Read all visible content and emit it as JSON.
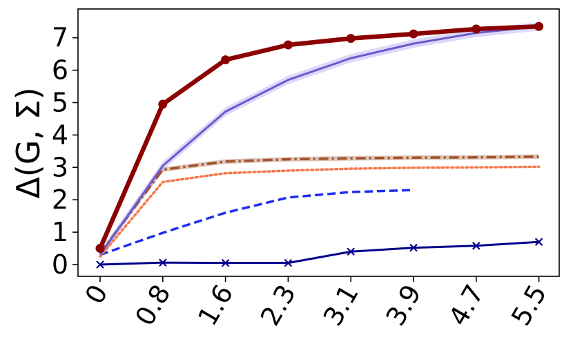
{
  "chart_data": {
    "type": "line",
    "title": "",
    "xlabel": "",
    "ylabel": "Δ(G, Σ)",
    "x_tick_labels": [
      "0",
      "0.8",
      "1.6",
      "2.3",
      "3.1",
      "3.9",
      "4.7",
      "5.5"
    ],
    "y_ticks": [
      0,
      1,
      2,
      3,
      4,
      5,
      6,
      7
    ],
    "ylim": [
      -0.35,
      7.8
    ],
    "grid": false,
    "legend": "none",
    "series": [
      {
        "x_index": [
          0,
          1,
          2,
          3,
          4,
          5,
          6,
          7
        ],
        "values": [
          0.0,
          0.06,
          0.05,
          0.05,
          0.4,
          0.52,
          0.58,
          0.7
        ],
        "color": "#00008b",
        "style": "solid",
        "width": 3,
        "marker": "x"
      },
      {
        "x_index": [
          0,
          1,
          2,
          3,
          4,
          5
        ],
        "values": [
          0.3,
          0.98,
          1.6,
          2.07,
          2.24,
          2.3
        ],
        "color": "#1f2ff0",
        "style": "dashed",
        "width": 3.5,
        "marker": "none"
      },
      {
        "x_index": [
          0,
          1,
          2,
          3,
          4,
          5,
          6,
          7
        ],
        "values": [
          0.25,
          2.55,
          2.82,
          2.9,
          2.96,
          2.99,
          3.0,
          3.02
        ],
        "color": "#f4784a",
        "style": "dotted",
        "width": 3.5,
        "marker": "none"
      },
      {
        "x_index": [
          0,
          1,
          2,
          3,
          4,
          5,
          6,
          7
        ],
        "values": [
          0.35,
          2.93,
          3.18,
          3.25,
          3.28,
          3.3,
          3.31,
          3.33
        ],
        "color": "#a0522d",
        "style": "dashdot",
        "width": 3.5,
        "marker": "none",
        "band": 0.07,
        "band_color": "#a0522d"
      },
      {
        "x_index": [
          0,
          1,
          2,
          3,
          4,
          5,
          6,
          7
        ],
        "values": [
          0.3,
          3.05,
          4.72,
          5.7,
          6.37,
          6.82,
          7.15,
          7.35
        ],
        "color": "#6a5acd",
        "style": "solid",
        "width": 3,
        "marker": "none",
        "band": 0.13,
        "band_color": "#9a8ff0"
      },
      {
        "x_index": [
          0,
          1,
          2,
          3,
          4,
          5,
          6,
          7
        ],
        "values": [
          0.5,
          4.95,
          6.32,
          6.78,
          6.98,
          7.12,
          7.27,
          7.35
        ],
        "color": "#8b0000",
        "style": "solid",
        "width": 6.5,
        "marker": "o"
      }
    ]
  }
}
